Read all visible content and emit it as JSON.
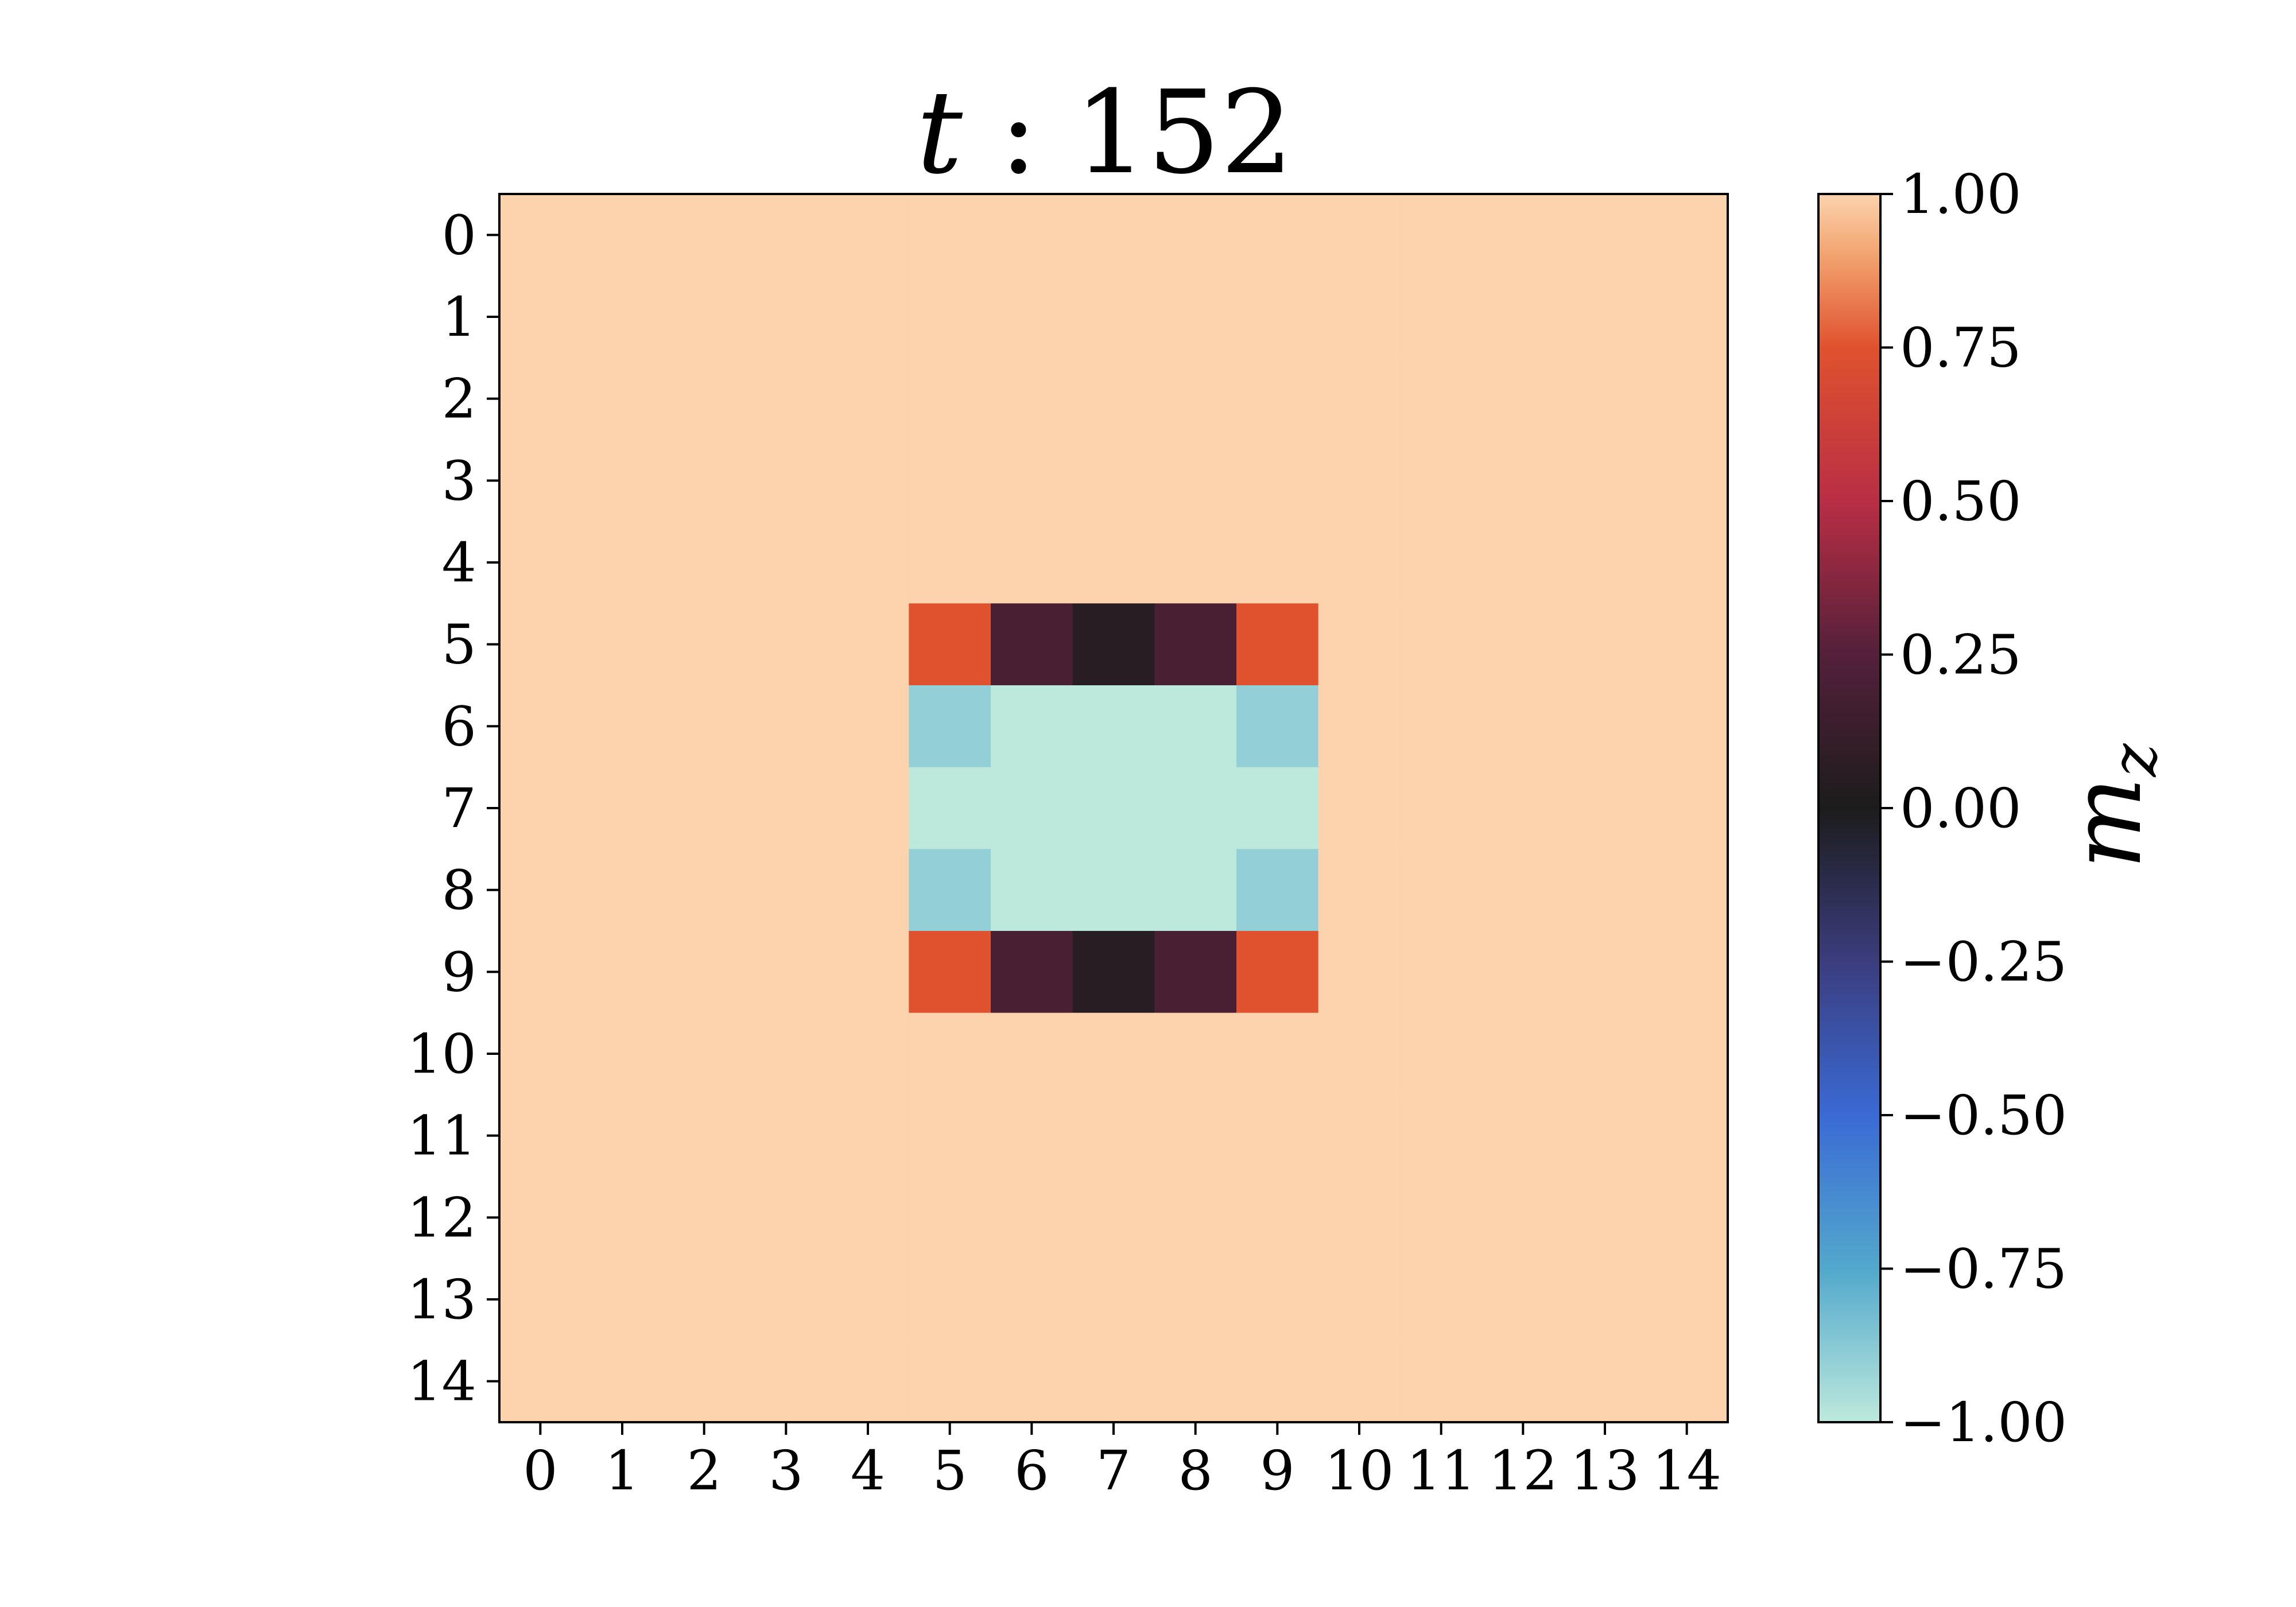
{
  "chart_data": {
    "type": "heatmap",
    "title": {
      "var": "t",
      "sep": " : ",
      "value": "152"
    },
    "xlabel": "",
    "ylabel": "",
    "x_ticks": [
      "0",
      "1",
      "2",
      "3",
      "4",
      "5",
      "6",
      "7",
      "8",
      "9",
      "10",
      "11",
      "12",
      "13",
      "14"
    ],
    "y_ticks": [
      "0",
      "1",
      "2",
      "3",
      "4",
      "5",
      "6",
      "7",
      "8",
      "9",
      "10",
      "11",
      "12",
      "13",
      "14"
    ],
    "grid": false,
    "colorbar": {
      "label_base": "m",
      "label_sub": "z",
      "range": [
        -1.0,
        1.0
      ],
      "ticks": [
        "1.00",
        "0.75",
        "0.50",
        "0.25",
        "0.00",
        "−0.25",
        "−0.50",
        "−0.75",
        "−1.00"
      ],
      "tick_values": [
        1.0,
        0.75,
        0.5,
        0.25,
        0.0,
        -0.25,
        -0.5,
        -0.75,
        -1.0
      ],
      "colormap": "icefire",
      "stops": [
        {
          "v": -1.0,
          "c": "#bde9dc"
        },
        {
          "v": -0.75,
          "c": "#52a8cc"
        },
        {
          "v": -0.5,
          "c": "#3a6ad4"
        },
        {
          "v": -0.25,
          "c": "#3b3d7e"
        },
        {
          "v": 0.0,
          "c": "#1c1c1c"
        },
        {
          "v": 0.25,
          "c": "#54203a"
        },
        {
          "v": 0.5,
          "c": "#b92e44"
        },
        {
          "v": 0.75,
          "c": "#e0522e"
        },
        {
          "v": 0.9,
          "c": "#f2a36f"
        },
        {
          "v": 1.0,
          "c": "#fcd3ad"
        }
      ]
    },
    "values": [
      [
        1,
        1,
        1,
        1,
        1,
        1,
        1,
        1,
        1,
        1,
        1,
        1,
        1,
        1,
        1
      ],
      [
        1,
        1,
        1,
        1,
        1,
        1,
        1,
        1,
        1,
        1,
        1,
        1,
        1,
        1,
        1
      ],
      [
        1,
        1,
        1,
        1,
        1,
        1,
        1,
        1,
        1,
        1,
        1,
        1,
        1,
        1,
        1
      ],
      [
        1,
        1,
        1,
        1,
        1,
        1,
        1,
        1,
        1,
        1,
        1,
        1,
        1,
        1,
        1
      ],
      [
        1,
        1,
        1,
        1,
        1,
        1,
        1,
        1,
        1,
        1,
        1,
        1,
        1,
        1,
        1
      ],
      [
        1,
        1,
        1,
        1,
        1,
        0.75,
        0.2,
        0.05,
        0.2,
        0.75,
        1,
        1,
        1,
        1,
        1
      ],
      [
        1,
        1,
        1,
        1,
        1,
        -0.9,
        -1,
        -1,
        -1,
        -0.9,
        1,
        1,
        1,
        1,
        1
      ],
      [
        1,
        1,
        1,
        1,
        1,
        -1,
        -1,
        -1,
        -1,
        -1,
        1,
        1,
        1,
        1,
        1
      ],
      [
        1,
        1,
        1,
        1,
        1,
        -0.9,
        -1,
        -1,
        -1,
        -0.9,
        1,
        1,
        1,
        1,
        1
      ],
      [
        1,
        1,
        1,
        1,
        1,
        0.75,
        0.2,
        0.05,
        0.2,
        0.75,
        1,
        1,
        1,
        1,
        1
      ],
      [
        1,
        1,
        1,
        1,
        1,
        1,
        1,
        1,
        1,
        1,
        1,
        1,
        1,
        1,
        1
      ],
      [
        1,
        1,
        1,
        1,
        1,
        1,
        1,
        1,
        1,
        1,
        1,
        1,
        1,
        1,
        1
      ],
      [
        1,
        1,
        1,
        1,
        1,
        1,
        1,
        1,
        1,
        1,
        1,
        1,
        1,
        1,
        1
      ],
      [
        1,
        1,
        1,
        1,
        1,
        1,
        1,
        1,
        1,
        1,
        1,
        1,
        1,
        1,
        1
      ],
      [
        1,
        1,
        1,
        1,
        1,
        1,
        1,
        1,
        1,
        1,
        1,
        1,
        1,
        1,
        1
      ]
    ]
  }
}
